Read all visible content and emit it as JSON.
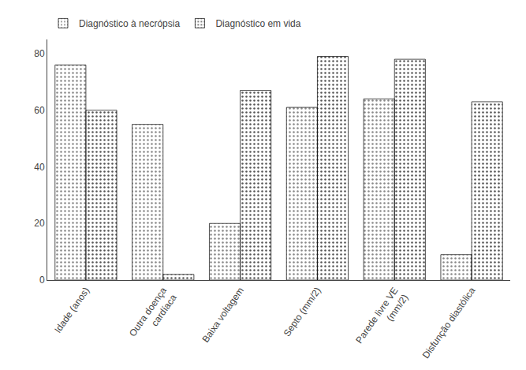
{
  "chart_data": {
    "type": "bar",
    "categories": [
      "Idade (anos)",
      "Outra doença\ncardíaca",
      "Baixa voltagem",
      "Septo (mm/2)",
      "Parede livre VE\n(mm/2)",
      "Disfunção diastólica"
    ],
    "series": [
      {
        "name": "Diagnóstico à necrópsia",
        "color": "#2b2b2b",
        "values": [
          76,
          55,
          20,
          61,
          64,
          9
        ]
      },
      {
        "name": "Diagnóstico em vida",
        "color": "#e8e8e8",
        "values": [
          60,
          2,
          67,
          79,
          78,
          63
        ]
      }
    ],
    "ylim": [
      0,
      85
    ],
    "yticks": [
      0,
      20,
      40,
      60,
      80
    ],
    "grid": false,
    "legend": "upper left"
  }
}
